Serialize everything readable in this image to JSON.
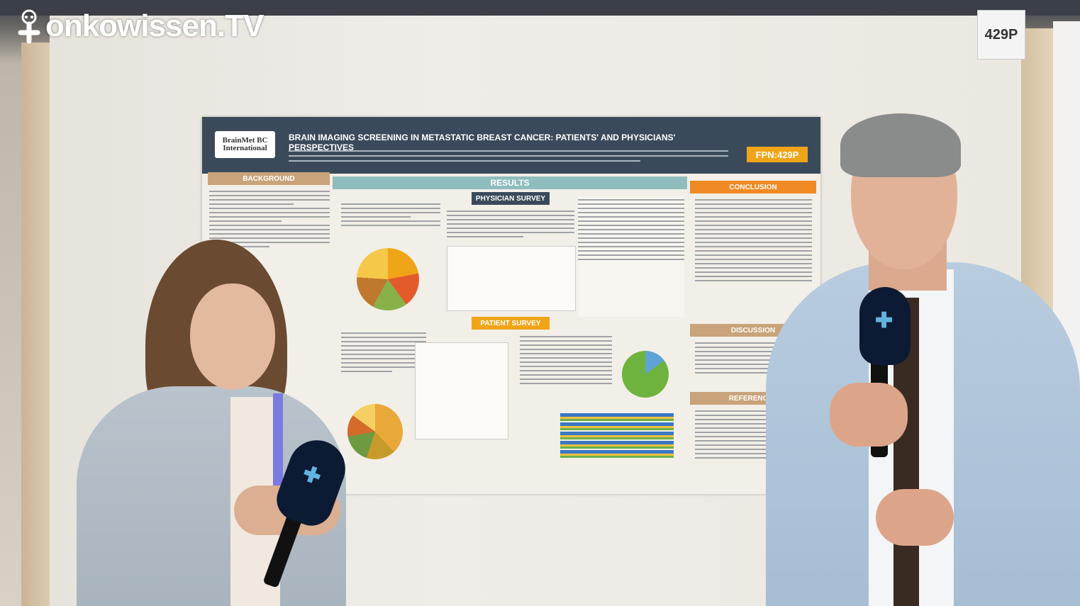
{
  "watermark": {
    "text": "onkowissen.TV",
    "icon": "owl-cross-icon"
  },
  "booth_tag": "429P",
  "poster": {
    "logo_text": "BrainMet BC International",
    "title": "BRAIN IMAGING SCREENING IN METASTATIC BREAST CANCER: PATIENTS' AND PHYSICIANS' PERSPECTIVES",
    "code": "FPN:429P",
    "sections": {
      "background": "BACKGROUND",
      "results": "RESULTS",
      "physician_survey": "PHYSICIAN SURVEY",
      "patient_survey": "PATIENT SURVEY",
      "conclusion": "CONCLUSION",
      "discussion": "DISCUSSION",
      "references": "REFERENCES"
    },
    "colors": {
      "header": "#3b4a5a",
      "orange": "#f08a24",
      "teal": "#8fbdbd",
      "brown": "#c9a37a"
    }
  }
}
